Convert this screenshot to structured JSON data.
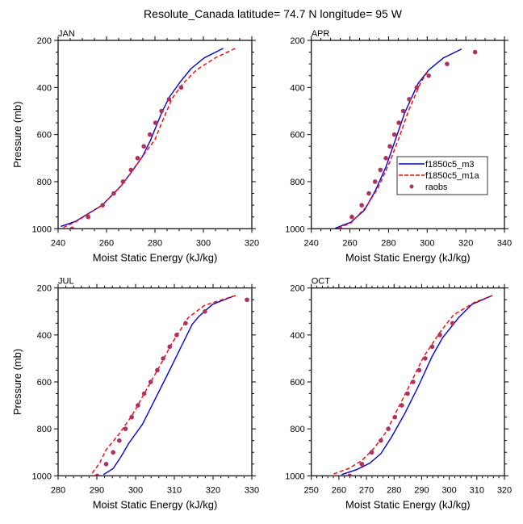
{
  "title": "Resolute_Canada  latitude= 74.7 N longitude= 95 W",
  "chart_data": [
    {
      "type": "line",
      "panel": "JAN",
      "title": "JAN",
      "xlabel": "Moist Static Energy (kJ/kg)",
      "ylabel": "Pressure (mb)",
      "xlim": [
        240,
        320
      ],
      "ylim": [
        1000,
        200
      ],
      "y_inverted": true,
      "xticks": [
        240,
        260,
        280,
        300,
        320
      ],
      "xminor_step": 5,
      "yticks": [
        200,
        400,
        600,
        800,
        1000
      ],
      "yminor_step": 50,
      "show_ylabel": true,
      "show_legend": false,
      "series": [
        {
          "name": "f1850c5_m3",
          "style": "solid",
          "color": "#0000e6",
          "x": [
            241.1,
            247.1,
            258.2,
            266.0,
            270.4,
            274.9,
            278.2,
            282.7,
            286.0,
            290.4,
            294.9,
            300.4,
            308.2
          ],
          "p": [
            990,
            969,
            900,
            818,
            758,
            692,
            623,
            509,
            440,
            377,
            320,
            274,
            234
          ]
        },
        {
          "name": "f1850c5_m1a",
          "style": "dashed",
          "color": "#ff0000",
          "x": [
            242.1,
            247.5,
            258.2,
            266.0,
            270.4,
            274.9,
            279.9,
            282.7,
            287.1,
            291.6,
            297.1,
            304.9,
            313.2
          ],
          "p": [
            995,
            969,
            900,
            818,
            758,
            692,
            623,
            553,
            446,
            383,
            326,
            274,
            234
          ]
        },
        {
          "name": "raobs",
          "style": "markers",
          "color": "#b03060",
          "x": [
            245.8,
            252.4,
            258.4,
            263.0,
            266.8,
            270.1,
            272.8,
            275.4,
            277.9,
            280.2,
            282.7,
            285.8,
            290.8
          ],
          "p": [
            1000,
            950,
            900,
            850,
            800,
            750,
            700,
            650,
            600,
            550,
            500,
            450,
            400
          ]
        }
      ]
    },
    {
      "type": "line",
      "panel": "APR",
      "title": "APR",
      "xlabel": "Moist Static Energy (kJ/kg)",
      "ylabel": "",
      "xlim": [
        240,
        340
      ],
      "ylim": [
        1000,
        200
      ],
      "y_inverted": true,
      "xticks": [
        240,
        260,
        280,
        300,
        320,
        340
      ],
      "xminor_step": 5,
      "yticks": [
        200,
        400,
        600,
        800,
        1000
      ],
      "yminor_step": 50,
      "show_ylabel": false,
      "show_legend": true,
      "legend": [
        {
          "label": "f1850c5_m3",
          "style": "solid",
          "color": "#0000e6"
        },
        {
          "label": "f1850c5_m1a",
          "style": "dashed",
          "color": "#ff0000"
        },
        {
          "label": "raobs",
          "style": "markers",
          "color": "#b03060"
        }
      ],
      "legend_placement": "center-right",
      "series": [
        {
          "name": "f1850c5_m3",
          "style": "solid",
          "color": "#0000e6",
          "x": [
            252.4,
            260.5,
            267.5,
            273.0,
            278.6,
            283.5,
            288.3,
            295.3,
            300.8,
            308.5,
            317.8
          ],
          "p": [
            998,
            972,
            921,
            841,
            738,
            623,
            509,
            383,
            326,
            274,
            237
          ]
        },
        {
          "name": "f1850c5_m1a",
          "style": "dashed",
          "color": "#ff0000",
          "x": [
            253.8,
            260.5,
            268.2,
            274.4,
            280.7,
            285.5,
            290.4,
            296.7,
            300.8
          ],
          "p": [
            998,
            975,
            909,
            829,
            715,
            612,
            498,
            378,
            326
          ]
        },
        {
          "name": "raobs",
          "style": "markers",
          "color": "#b03060",
          "x": [
            255.0,
            261.0,
            266.1,
            269.8,
            273.0,
            275.8,
            278.6,
            280.7,
            283.0,
            285.3,
            287.6,
            290.7,
            294.6,
            300.8,
            310.3,
            324.8
          ],
          "p": [
            1000,
            950,
            900,
            850,
            800,
            750,
            700,
            650,
            600,
            550,
            500,
            450,
            400,
            350,
            300,
            250
          ]
        }
      ]
    },
    {
      "type": "line",
      "panel": "JUL",
      "title": "JUL",
      "xlabel": "Moist Static Energy (kJ/kg)",
      "ylabel": "Pressure (mb)",
      "xlim": [
        280,
        330
      ],
      "ylim": [
        1000,
        200
      ],
      "y_inverted": true,
      "xticks": [
        280,
        290,
        300,
        310,
        320,
        330
      ],
      "xminor_step": 2,
      "yticks": [
        200,
        400,
        600,
        800,
        1000
      ],
      "yminor_step": 50,
      "show_ylabel": true,
      "show_legend": false,
      "series": [
        {
          "name": "f1850c5_m3",
          "style": "solid",
          "color": "#0000e6",
          "x": [
            291.7,
            294.2,
            296.3,
            298.3,
            301.8,
            305.3,
            308.8,
            312.2,
            314.6,
            316.4,
            319.9,
            325.4
          ],
          "p": [
            995,
            969,
            917,
            860,
            780,
            665,
            550,
            435,
            355,
            320,
            269,
            234
          ]
        },
        {
          "name": "f1850c5_m1a",
          "style": "dashed",
          "color": "#ff0000",
          "x": [
            288.8,
            290.7,
            292.4,
            295.6,
            299.0,
            302.5,
            306.0,
            309.4,
            313.6,
            317.8,
            320.9,
            326.1
          ],
          "p": [
            989,
            946,
            889,
            825,
            745,
            642,
            539,
            435,
            326,
            274,
            257,
            231
          ]
        },
        {
          "name": "raobs",
          "style": "markers",
          "color": "#b03060",
          "x": [
            290.1,
            292.4,
            294.2,
            295.8,
            297.4,
            299.0,
            300.6,
            302.2,
            303.9,
            305.6,
            307.1,
            308.8,
            310.6,
            312.9,
            317.9,
            328.75
          ],
          "p": [
            1000,
            950,
            900,
            850,
            800,
            750,
            700,
            650,
            600,
            550,
            500,
            450,
            400,
            350,
            300,
            250
          ]
        }
      ]
    },
    {
      "type": "line",
      "panel": "OCT",
      "title": "OCT",
      "xlabel": "Moist Static Energy (kJ/kg)",
      "ylabel": "",
      "xlim": [
        250,
        320
      ],
      "ylim": [
        1000,
        200
      ],
      "y_inverted": true,
      "xticks": [
        250,
        260,
        270,
        280,
        290,
        300,
        310,
        320
      ],
      "xminor_step": 2,
      "yticks": [
        200,
        400,
        600,
        800,
        1000
      ],
      "yminor_step": 50,
      "show_ylabel": false,
      "show_legend": false,
      "series": [
        {
          "name": "f1850c5_m3",
          "style": "solid",
          "color": "#0000e6",
          "x": [
            261.0,
            266.4,
            271.2,
            275.2,
            279.0,
            283.9,
            288.8,
            293.7,
            297.6,
            303.4,
            308.3,
            315.6
          ],
          "p": [
            995,
            974,
            946,
            906,
            837,
            734,
            619,
            493,
            412,
            326,
            269,
            232
          ]
        },
        {
          "name": "f1850c5_m1a",
          "style": "dashed",
          "color": "#ff0000",
          "x": [
            258.1,
            263.5,
            268.3,
            272.7,
            277.1,
            281.0,
            285.9,
            290.7,
            296.6,
            301.5,
            309.2,
            315.6
          ],
          "p": [
            992,
            969,
            935,
            883,
            814,
            722,
            608,
            493,
            389,
            315,
            261,
            232
          ]
        },
        {
          "name": "raobs",
          "style": "markers",
          "color": "#b03060",
          "x": [
            263.9,
            268.3,
            271.9,
            275.2,
            277.9,
            280.3,
            282.8,
            284.9,
            286.9,
            289.1,
            291.3,
            293.8,
            296.6,
            301.2
          ],
          "p": [
            1000,
            950,
            900,
            850,
            800,
            750,
            700,
            650,
            600,
            550,
            500,
            450,
            400,
            350
          ]
        }
      ]
    }
  ]
}
